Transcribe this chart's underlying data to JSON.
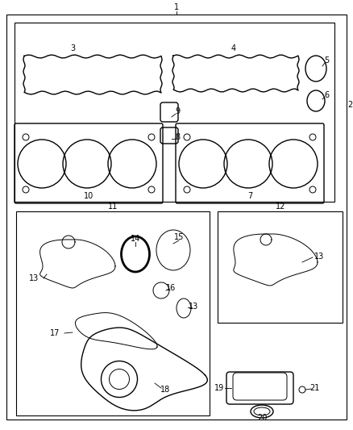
{
  "bg_color": "#ffffff",
  "lw_main": 1.0,
  "lw_thin": 0.7,
  "lw_border": 0.8,
  "font_size": 7,
  "fig_width": 4.38,
  "fig_height": 5.33,
  "dpi": 100
}
